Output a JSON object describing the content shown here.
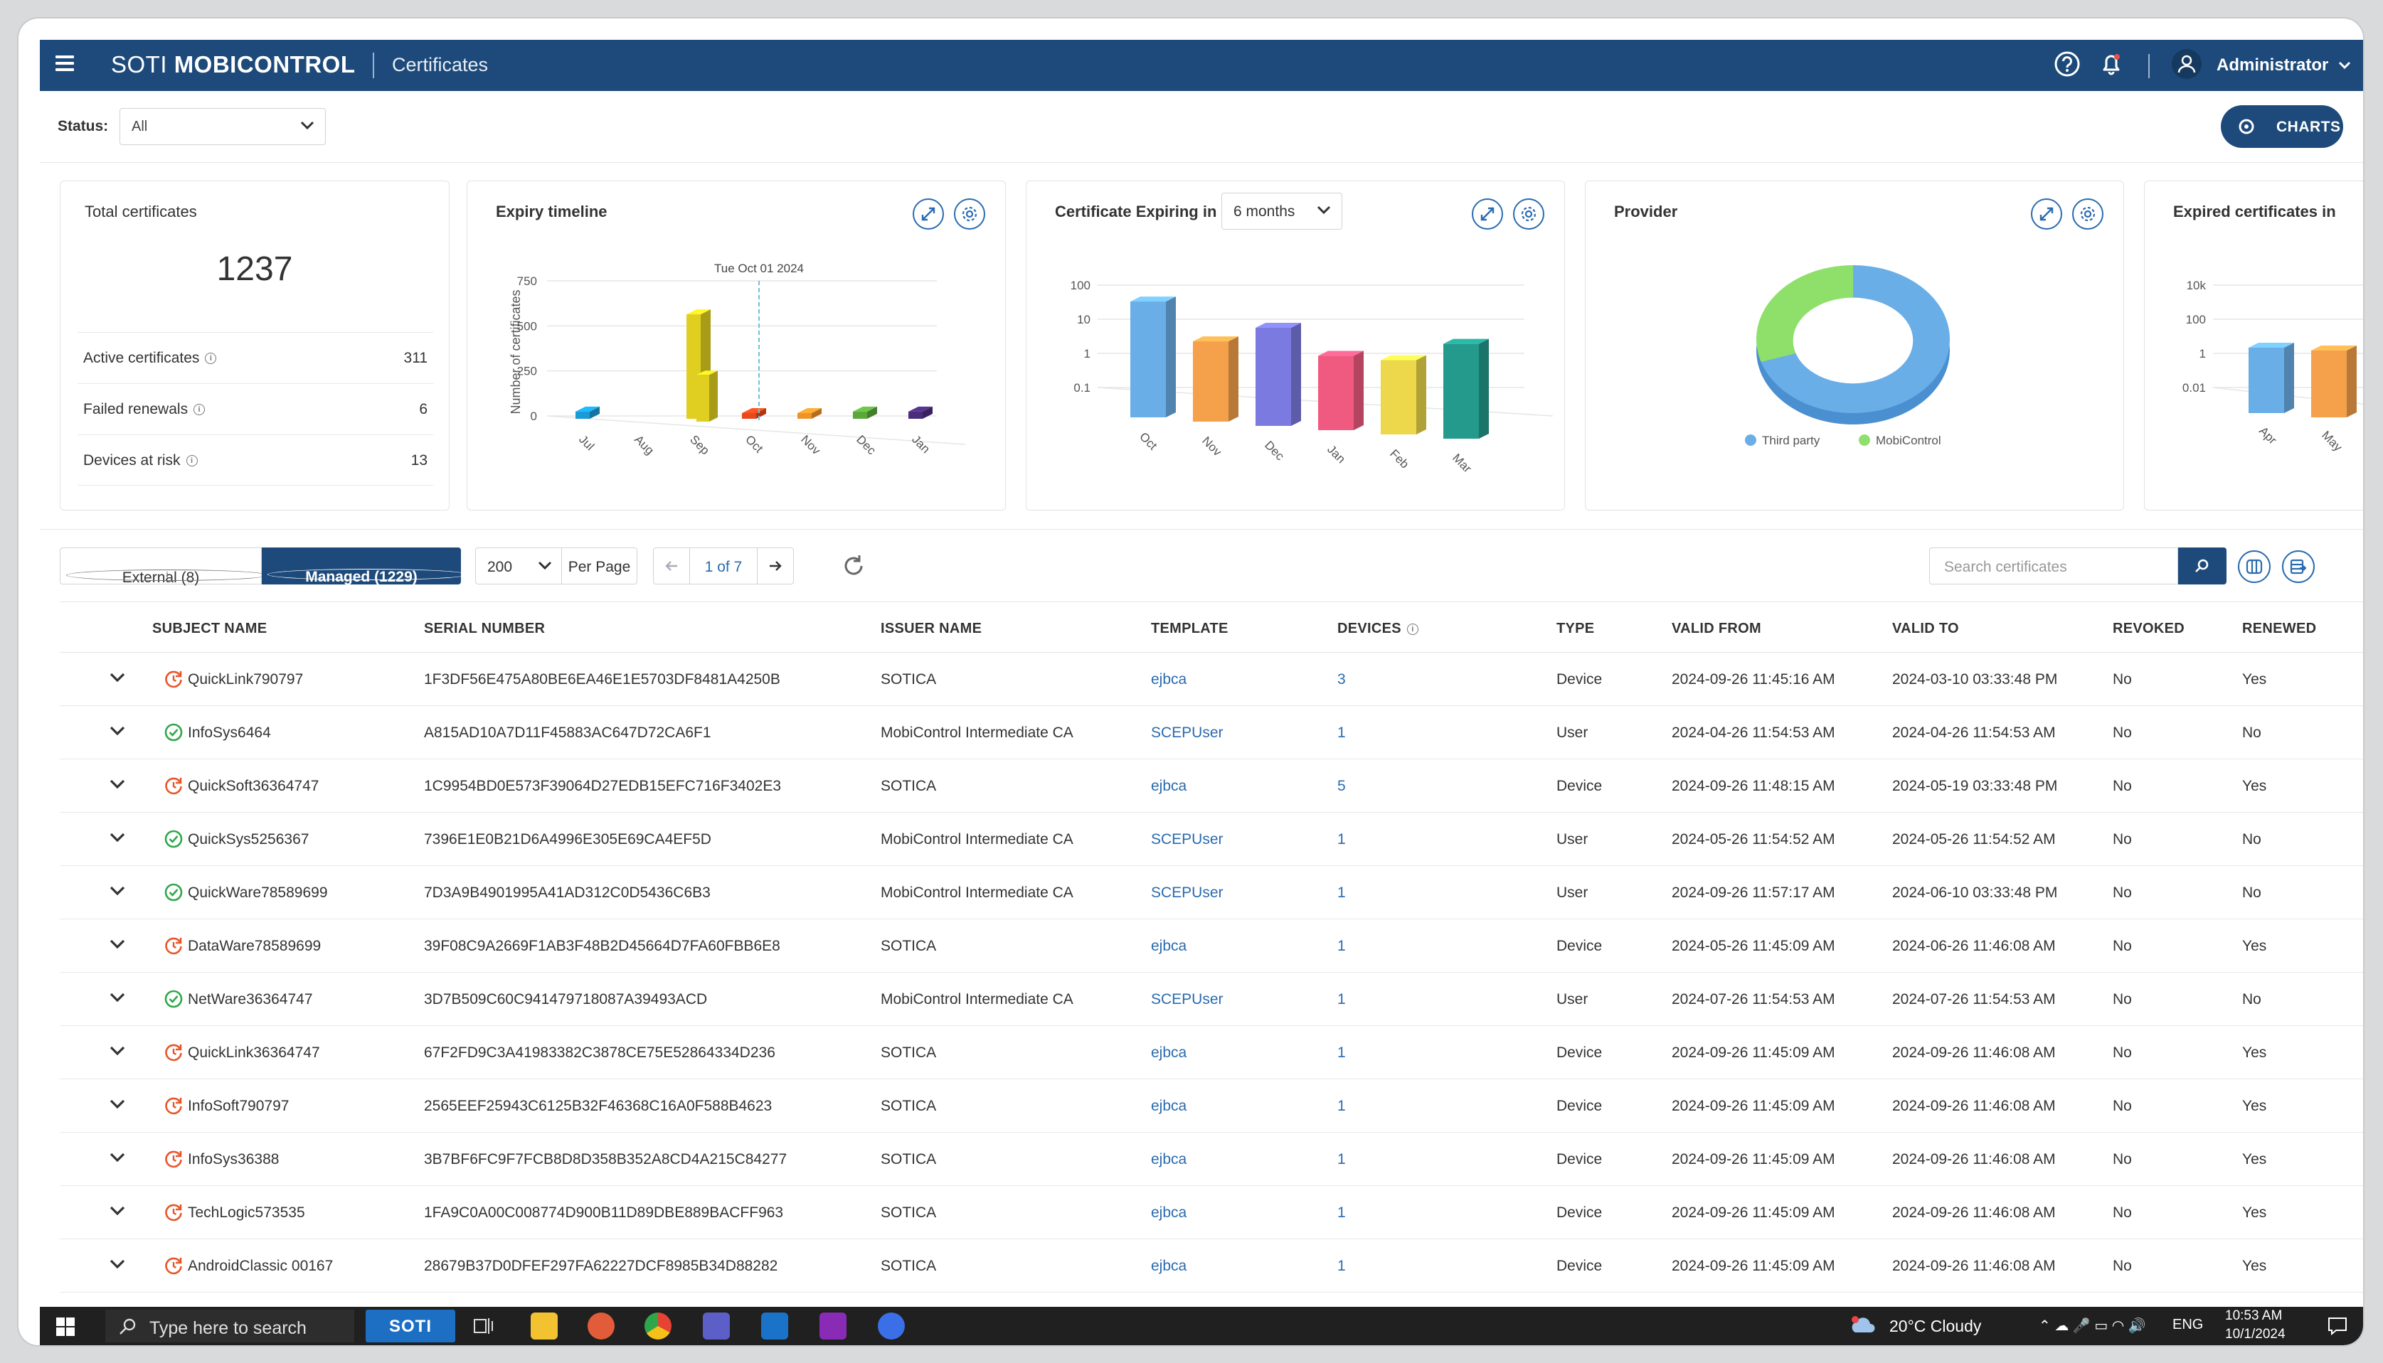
{
  "header": {
    "brand_light": "SOTI",
    "brand_bold": "MOBICONTROL",
    "page": "Certificates",
    "user": "Administrator"
  },
  "filters": {
    "status_label": "Status:",
    "status_value": "All",
    "charts_button": "CHARTS"
  },
  "summary": {
    "title": "Total certificates",
    "total": "1237",
    "rows": [
      {
        "label": "Active certificates",
        "value": "311"
      },
      {
        "label": "Failed renewals",
        "value": "6"
      },
      {
        "label": "Devices at risk",
        "value": "13"
      }
    ]
  },
  "cards": {
    "expiry_title": "Expiry timeline",
    "expiring_title": "Certificate Expiring in",
    "expiring_period": "6 months",
    "provider_title": "Provider",
    "expired_title": "Expired certificates in"
  },
  "chart_data": [
    {
      "type": "bar",
      "title": "Expiry timeline",
      "ylabel": "Number of certificates",
      "categories": [
        "Jul",
        "Aug",
        "Sep",
        "Oct",
        "Nov",
        "Dec",
        "Jan"
      ],
      "y_ticks": [
        "0",
        "250",
        "500",
        "750"
      ],
      "ylim": [
        0,
        750
      ],
      "annotation": "Tue Oct 01 2024",
      "series": [
        {
          "values": [
            40,
            0,
            580,
            20,
            30,
            40,
            40
          ]
        }
      ],
      "colors": [
        "#1a9ad6",
        "#e0cf20",
        "#e0cf20",
        "#e8481c",
        "#f0922a",
        "#5aa83a",
        "#4a2c7a"
      ]
    },
    {
      "type": "bar",
      "title": "Certificate Expiring in",
      "categories": [
        "Oct",
        "Nov",
        "Dec",
        "Jan",
        "Feb",
        "Mar"
      ],
      "y_ticks": [
        "0.1",
        "1",
        "10",
        "100"
      ],
      "log_scale": true,
      "values": [
        30,
        3,
        10,
        2,
        2,
        8
      ],
      "colors": [
        "#6aaee8",
        "#f5a04a",
        "#7a7ae0",
        "#f05a80",
        "#ecd84a",
        "#249a8c"
      ]
    },
    {
      "type": "pie",
      "title": "Provider",
      "labels": [
        "Third party",
        "MobiControl"
      ],
      "values": [
        70,
        30
      ],
      "colors": [
        "#6aaee8",
        "#8fe06a"
      ]
    },
    {
      "type": "bar",
      "title": "Expired certificates in",
      "categories": [
        "Apr",
        "May"
      ],
      "y_ticks": [
        "0.01",
        "1",
        "100",
        "10k"
      ],
      "log_scale": true,
      "values": [
        1,
        1
      ],
      "colors": [
        "#6aaee8",
        "#f5a04a"
      ]
    }
  ],
  "toolbar": {
    "external_tab": "External (8)",
    "managed_tab": "Managed (1229)",
    "per_page_value": "200",
    "per_page_label": "Per Page",
    "page_indicator": "1 of 7",
    "search_placeholder": "Search certificates"
  },
  "table": {
    "headers": [
      "SUBJECT NAME",
      "SERIAL NUMBER",
      "ISSUER NAME",
      "TEMPLATE",
      "DEVICES",
      "TYPE",
      "VALID FROM",
      "VALID TO",
      "REVOKED",
      "RENEWED"
    ],
    "rows": [
      {
        "status": "renewing",
        "subject": "QuickLink790797",
        "serial": "1F3DF56E475A80BE6EA46E1E5703DF8481A4250B",
        "issuer": "SOTICA",
        "template": "ejbca",
        "devices": "3",
        "type": "Device",
        "from": "2024-09-26 11:45:16 AM",
        "to": "2024-03-10 03:33:48 PM",
        "revoked": "No",
        "renewed": "Yes"
      },
      {
        "status": "active",
        "subject": "InfoSys6464",
        "serial": "A815AD10A7D11F45883AC647D72CA6F1",
        "issuer": "MobiControl Intermediate CA",
        "template": "SCEPUser",
        "devices": "1",
        "type": "User",
        "from": "2024-04-26 11:54:53 AM",
        "to": "2024-04-26 11:54:53 AM",
        "revoked": "No",
        "renewed": "No"
      },
      {
        "status": "renewing",
        "subject": "QuickSoft36364747",
        "serial": "1C9954BD0E573F39064D27EDB15EFC716F3402E3",
        "issuer": "SOTICA",
        "template": "ejbca",
        "devices": "5",
        "type": "Device",
        "from": "2024-09-26 11:48:15 AM",
        "to": "2024-05-19 03:33:48 PM",
        "revoked": "No",
        "renewed": "Yes"
      },
      {
        "status": "active",
        "subject": "QuickSys5256367",
        "serial": "7396E1E0B21D6A4996E305E69CA4EF5D",
        "issuer": "MobiControl Intermediate CA",
        "template": "SCEPUser",
        "devices": "1",
        "type": "User",
        "from": "2024-05-26 11:54:52 AM",
        "to": "2024-05-26 11:54:52 AM",
        "revoked": "No",
        "renewed": "No"
      },
      {
        "status": "active",
        "subject": "QuickWare78589699",
        "serial": "7D3A9B4901995A41AD312C0D5436C6B3",
        "issuer": "MobiControl Intermediate CA",
        "template": "SCEPUser",
        "devices": "1",
        "type": "User",
        "from": "2024-09-26 11:57:17 AM",
        "to": "2024-06-10 03:33:48 PM",
        "revoked": "No",
        "renewed": "No"
      },
      {
        "status": "renewing",
        "subject": "DataWare78589699",
        "serial": "39F08C9A2669F1AB3F48B2D45664D7FA60FBB6E8",
        "issuer": "SOTICA",
        "template": "ejbca",
        "devices": "1",
        "type": "Device",
        "from": "2024-05-26 11:45:09 AM",
        "to": "2024-06-26 11:46:08 AM",
        "revoked": "No",
        "renewed": "Yes"
      },
      {
        "status": "active",
        "subject": "NetWare36364747",
        "serial": "3D7B509C60C941479718087A39493ACD",
        "issuer": "MobiControl Intermediate CA",
        "template": "SCEPUser",
        "devices": "1",
        "type": "User",
        "from": "2024-07-26 11:54:53 AM",
        "to": "2024-07-26 11:54:53 AM",
        "revoked": "No",
        "renewed": "No"
      },
      {
        "status": "renewing",
        "subject": "QuickLink36364747",
        "serial": "67F2FD9C3A41983382C3878CE75E52864334D236",
        "issuer": "SOTICA",
        "template": "ejbca",
        "devices": "1",
        "type": "Device",
        "from": "2024-09-26 11:45:09 AM",
        "to": "2024-09-26 11:46:08 AM",
        "revoked": "No",
        "renewed": "Yes"
      },
      {
        "status": "renewing",
        "subject": "InfoSoft790797",
        "serial": "2565EEF25943C6125B32F46368C16A0F588B4623",
        "issuer": "SOTICA",
        "template": "ejbca",
        "devices": "1",
        "type": "Device",
        "from": "2024-09-26 11:45:09 AM",
        "to": "2024-09-26 11:46:08 AM",
        "revoked": "No",
        "renewed": "Yes"
      },
      {
        "status": "renewing",
        "subject": "InfoSys36388",
        "serial": "3B7BF6FC9F7FCB8D8D358B352A8CD4A215C84277",
        "issuer": "SOTICA",
        "template": "ejbca",
        "devices": "1",
        "type": "Device",
        "from": "2024-09-26 11:45:09 AM",
        "to": "2024-09-26 11:46:08 AM",
        "revoked": "No",
        "renewed": "Yes"
      },
      {
        "status": "renewing",
        "subject": "TechLogic573535",
        "serial": "1FA9C0A00C008774D900B11D89DBE889BACFF963",
        "issuer": "SOTICA",
        "template": "ejbca",
        "devices": "1",
        "type": "Device",
        "from": "2024-09-26 11:45:09 AM",
        "to": "2024-09-26 11:46:08 AM",
        "revoked": "No",
        "renewed": "Yes"
      },
      {
        "status": "renewing",
        "subject": "AndroidClassic 00167",
        "serial": "28679B37D0DFEF297FA62227DCF8985B34D88282",
        "issuer": "SOTICA",
        "template": "ejbca",
        "devices": "1",
        "type": "Device",
        "from": "2024-09-26 11:45:09 AM",
        "to": "2024-09-26 11:46:08 AM",
        "revoked": "No",
        "renewed": "Yes"
      }
    ]
  },
  "taskbar": {
    "search_placeholder": "Type here to search",
    "soti_label": "SOTI",
    "weather": "20°C  Cloudy",
    "language": "ENG",
    "time": "10:53 AM",
    "date": "10/1/2024"
  }
}
